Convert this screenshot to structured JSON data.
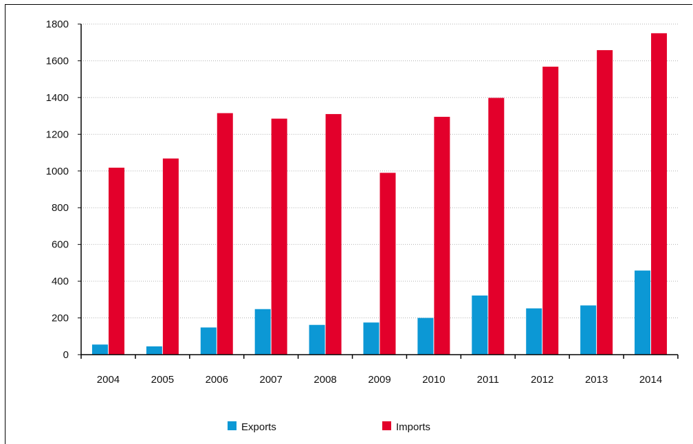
{
  "chart_data": {
    "type": "bar",
    "categories": [
      "2004",
      "2005",
      "2006",
      "2007",
      "2008",
      "2009",
      "2010",
      "2011",
      "2012",
      "2013",
      "2014"
    ],
    "series": [
      {
        "name": "Exports",
        "color": "#0c98d5",
        "values": [
          55,
          45,
          148,
          248,
          162,
          175,
          200,
          322,
          252,
          268,
          458
        ]
      },
      {
        "name": "Imports",
        "color": "#e3002b",
        "values": [
          1018,
          1068,
          1315,
          1285,
          1310,
          990,
          1295,
          1398,
          1568,
          1658,
          1750
        ]
      }
    ],
    "title": "",
    "xlabel": "",
    "ylabel": "",
    "ylim": [
      0,
      1800
    ],
    "yticks": [
      0,
      200,
      400,
      600,
      800,
      1000,
      1200,
      1400,
      1600,
      1800
    ],
    "grid": "horizontal dotted",
    "legend_position": "bottom-center"
  }
}
